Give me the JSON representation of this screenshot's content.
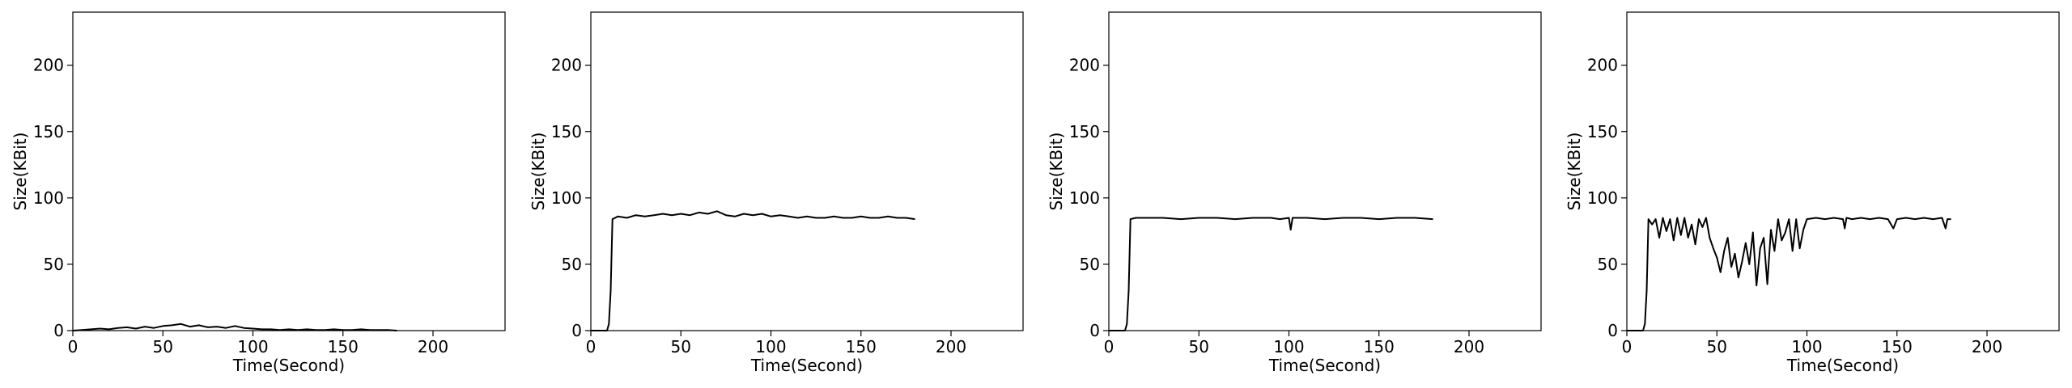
{
  "chart_data": [
    {
      "type": "line",
      "xlabel": "Time(Second)",
      "ylabel": "Size(KBit)",
      "xlim": [
        0,
        240
      ],
      "ylim": [
        0,
        240
      ],
      "xticks": [
        0,
        50,
        100,
        150,
        200
      ],
      "yticks": [
        0,
        50,
        100,
        150,
        200
      ],
      "grid": false,
      "series": [
        {
          "x": [
            0,
            5,
            10,
            15,
            20,
            25,
            30,
            35,
            40,
            45,
            50,
            55,
            60,
            65,
            70,
            75,
            80,
            85,
            90,
            95,
            100,
            105,
            110,
            115,
            120,
            125,
            130,
            135,
            140,
            145,
            150,
            155,
            160,
            165,
            170,
            175,
            180
          ],
          "y": [
            0,
            0.5,
            1,
            1.5,
            1,
            2,
            2.5,
            1.5,
            3,
            2,
            3.5,
            4,
            5,
            3,
            4,
            2.5,
            3,
            2,
            3.5,
            2,
            1.5,
            1,
            1,
            0.5,
            1,
            0.5,
            1,
            0.5,
            0.5,
            1,
            0.5,
            0.5,
            1,
            0.5,
            0.5,
            0.5,
            0
          ]
        }
      ]
    },
    {
      "type": "line",
      "xlabel": "Time(Second)",
      "ylabel": "Size(KBit)",
      "xlim": [
        0,
        240
      ],
      "ylim": [
        0,
        240
      ],
      "xticks": [
        0,
        50,
        100,
        150,
        200
      ],
      "yticks": [
        0,
        50,
        100,
        150,
        200
      ],
      "grid": false,
      "series": [
        {
          "x": [
            0,
            5,
            9,
            10,
            11,
            12,
            15,
            20,
            25,
            30,
            35,
            40,
            45,
            50,
            55,
            60,
            65,
            70,
            75,
            80,
            85,
            90,
            95,
            100,
            105,
            110,
            115,
            120,
            125,
            130,
            135,
            140,
            145,
            150,
            155,
            160,
            165,
            170,
            175,
            180
          ],
          "y": [
            0,
            0,
            0,
            5,
            30,
            84,
            86,
            85,
            87,
            86,
            87,
            88,
            87,
            88,
            87,
            89,
            88,
            90,
            87,
            86,
            88,
            87,
            88,
            86,
            87,
            86,
            85,
            86,
            85,
            85,
            86,
            85,
            85,
            86,
            85,
            85,
            86,
            85,
            85,
            84
          ]
        }
      ]
    },
    {
      "type": "line",
      "xlabel": "Time(Second)",
      "ylabel": "Size(KBit)",
      "xlim": [
        0,
        240
      ],
      "ylim": [
        0,
        240
      ],
      "xticks": [
        0,
        50,
        100,
        150,
        200
      ],
      "yticks": [
        0,
        50,
        100,
        150,
        200
      ],
      "grid": false,
      "series": [
        {
          "x": [
            0,
            5,
            9,
            10,
            11,
            12,
            15,
            20,
            30,
            40,
            50,
            60,
            70,
            80,
            90,
            95,
            100,
            101,
            102,
            103,
            110,
            120,
            130,
            140,
            150,
            160,
            170,
            180
          ],
          "y": [
            0,
            0,
            0,
            5,
            30,
            84,
            85,
            85,
            85,
            84,
            85,
            85,
            84,
            85,
            85,
            84,
            85,
            76,
            85,
            85,
            85,
            84,
            85,
            85,
            84,
            85,
            85,
            84
          ]
        }
      ]
    },
    {
      "type": "line",
      "xlabel": "Time(Second)",
      "ylabel": "Size(KBit)",
      "xlim": [
        0,
        240
      ],
      "ylim": [
        0,
        240
      ],
      "xticks": [
        0,
        50,
        100,
        150,
        200
      ],
      "yticks": [
        0,
        50,
        100,
        150,
        200
      ],
      "grid": false,
      "series": [
        {
          "x": [
            0,
            5,
            9,
            10,
            11,
            12,
            14,
            16,
            18,
            20,
            22,
            24,
            26,
            28,
            30,
            32,
            34,
            36,
            38,
            40,
            42,
            44,
            46,
            48,
            50,
            52,
            54,
            56,
            58,
            60,
            62,
            64,
            66,
            68,
            70,
            72,
            74,
            76,
            78,
            80,
            82,
            84,
            86,
            88,
            90,
            92,
            94,
            96,
            98,
            100,
            105,
            110,
            115,
            120,
            121,
            122,
            125,
            130,
            135,
            140,
            145,
            148,
            150,
            155,
            160,
            165,
            170,
            175,
            177,
            178,
            180
          ],
          "y": [
            0,
            0,
            0,
            5,
            30,
            84,
            80,
            84,
            70,
            85,
            75,
            84,
            68,
            85,
            72,
            85,
            70,
            80,
            65,
            84,
            78,
            85,
            70,
            62,
            55,
            44,
            60,
            70,
            48,
            58,
            40,
            52,
            66,
            50,
            74,
            34,
            62,
            70,
            35,
            76,
            60,
            84,
            68,
            74,
            84,
            60,
            84,
            62,
            76,
            84,
            85,
            84,
            85,
            84,
            77,
            85,
            84,
            85,
            84,
            85,
            84,
            77,
            84,
            85,
            84,
            85,
            84,
            85,
            77,
            84,
            84
          ]
        }
      ]
    }
  ]
}
